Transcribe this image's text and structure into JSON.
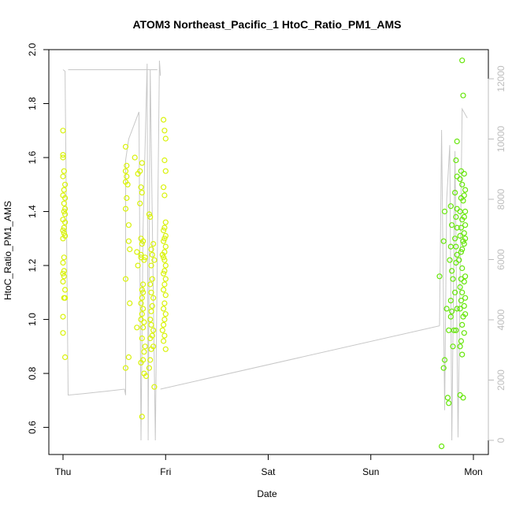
{
  "chart_data": {
    "type": "scatter",
    "title": "ATOM3 Northeast_Pacific_1 HtoC_Ratio_PM1_AMS",
    "xlabel": "Date",
    "ylabel": "HtoC_Ratio_PM1_AMS",
    "xlim": [
      0,
      4
    ],
    "ylim": [
      0.52,
      2.0
    ],
    "x_ticks": [
      {
        "value": 0,
        "label": "Thu"
      },
      {
        "value": 1,
        "label": "Fri"
      },
      {
        "value": 2,
        "label": "Sat"
      },
      {
        "value": 3,
        "label": "Sun"
      },
      {
        "value": 4,
        "label": "Mon"
      }
    ],
    "y_ticks": [
      {
        "value": 0.6,
        "label": "0.6"
      },
      {
        "value": 0.8,
        "label": "0.8"
      },
      {
        "value": 1.0,
        "label": "1.0"
      },
      {
        "value": 1.2,
        "label": "1.2"
      },
      {
        "value": 1.4,
        "label": "1.4"
      },
      {
        "value": 1.6,
        "label": "1.6"
      },
      {
        "value": 1.8,
        "label": "1.8"
      },
      {
        "value": 2.0,
        "label": "2.0"
      }
    ],
    "y2lim": [
      0,
      13500
    ],
    "y2_ticks": [
      {
        "value": 0,
        "label": "0"
      },
      {
        "value": 2000,
        "label": "2000"
      },
      {
        "value": 4000,
        "label": "4000"
      },
      {
        "value": 6000,
        "label": "6000"
      },
      {
        "value": 8000,
        "label": "8000"
      },
      {
        "value": 10000,
        "label": "10000"
      },
      {
        "value": 12000,
        "label": "12000"
      }
    ],
    "grid": false,
    "colors": {
      "early": "#d9f20a",
      "late": "#66e60a",
      "altitude_line": "#c8c8c8",
      "axis": "#000000",
      "right_axis": "#bdbdbd"
    },
    "series": [
      {
        "values": [
          [
            0.0,
            1.7
          ],
          [
            0.0,
            1.61
          ],
          [
            0.0,
            1.6
          ],
          [
            0.01,
            1.55
          ],
          [
            0.0,
            1.53
          ],
          [
            0.02,
            1.5
          ],
          [
            0.01,
            1.48
          ],
          [
            0.0,
            1.46
          ],
          [
            0.02,
            1.45
          ],
          [
            0.01,
            1.43
          ],
          [
            0.02,
            1.41
          ],
          [
            0.01,
            1.4
          ],
          [
            0.02,
            1.39
          ],
          [
            0.0,
            1.37
          ],
          [
            0.02,
            1.36
          ],
          [
            0.01,
            1.34
          ],
          [
            0.0,
            1.33
          ],
          [
            0.01,
            1.32
          ],
          [
            0.02,
            1.31
          ],
          [
            0.0,
            1.3
          ],
          [
            0.01,
            1.23
          ],
          [
            0.0,
            1.21
          ],
          [
            0.01,
            1.18
          ],
          [
            0.0,
            1.17
          ],
          [
            0.01,
            1.16
          ],
          [
            0.0,
            1.14
          ],
          [
            0.02,
            1.11
          ],
          [
            0.01,
            1.08
          ],
          [
            0.02,
            1.08
          ],
          [
            0.0,
            1.01
          ],
          [
            0.0,
            0.95
          ],
          [
            0.02,
            0.86
          ],
          [
            0.61,
            1.64
          ],
          [
            0.62,
            1.57
          ],
          [
            0.61,
            1.55
          ],
          [
            0.62,
            1.53
          ],
          [
            0.61,
            1.51
          ],
          [
            0.63,
            1.5
          ],
          [
            0.62,
            1.45
          ],
          [
            0.61,
            1.41
          ],
          [
            0.64,
            1.35
          ],
          [
            0.64,
            1.29
          ],
          [
            0.65,
            1.26
          ],
          [
            0.61,
            1.15
          ],
          [
            0.65,
            1.06
          ],
          [
            0.64,
            0.86
          ],
          [
            0.61,
            0.82
          ],
          [
            0.7,
            1.6
          ],
          [
            0.73,
            1.54
          ],
          [
            0.77,
            1.58
          ],
          [
            0.75,
            1.55
          ],
          [
            0.76,
            1.49
          ],
          [
            0.77,
            1.47
          ],
          [
            0.75,
            1.43
          ],
          [
            0.72,
            1.25
          ],
          [
            0.76,
            1.23
          ],
          [
            0.73,
            1.2
          ],
          [
            0.76,
            1.3
          ],
          [
            0.78,
            1.29
          ],
          [
            0.77,
            1.28
          ],
          [
            0.76,
            1.24
          ],
          [
            0.8,
            1.23
          ],
          [
            0.79,
            1.22
          ],
          [
            0.78,
            1.13
          ],
          [
            0.77,
            1.11
          ],
          [
            0.78,
            1.1
          ],
          [
            0.77,
            1.08
          ],
          [
            0.76,
            1.06
          ],
          [
            0.78,
            1.04
          ],
          [
            0.77,
            1.02
          ],
          [
            0.76,
            1.0
          ],
          [
            0.79,
            0.99
          ],
          [
            0.78,
            0.97
          ],
          [
            0.72,
            0.97
          ],
          [
            0.77,
            0.93
          ],
          [
            0.8,
            0.9
          ],
          [
            0.79,
            0.88
          ],
          [
            0.78,
            0.85
          ],
          [
            0.76,
            0.84
          ],
          [
            0.81,
            0.79
          ],
          [
            0.79,
            0.8
          ],
          [
            0.77,
            0.64
          ],
          [
            0.84,
            1.39
          ],
          [
            0.85,
            1.38
          ],
          [
            0.88,
            1.28
          ],
          [
            0.86,
            1.26
          ],
          [
            0.87,
            1.24
          ],
          [
            0.89,
            1.22
          ],
          [
            0.86,
            1.2
          ],
          [
            0.87,
            1.15
          ],
          [
            0.85,
            1.13
          ],
          [
            0.86,
            1.1
          ],
          [
            0.88,
            1.08
          ],
          [
            0.87,
            1.05
          ],
          [
            0.86,
            1.03
          ],
          [
            0.85,
            1.0
          ],
          [
            0.86,
            0.98
          ],
          [
            0.88,
            0.96
          ],
          [
            0.87,
            0.94
          ],
          [
            0.85,
            0.93
          ],
          [
            0.88,
            0.9
          ],
          [
            0.86,
            0.89
          ],
          [
            0.85,
            0.85
          ],
          [
            0.84,
            0.82
          ],
          [
            0.89,
            0.75
          ],
          [
            0.98,
            1.74
          ],
          [
            0.99,
            1.7
          ],
          [
            1.0,
            1.67
          ],
          [
            0.99,
            1.59
          ],
          [
            1.0,
            1.55
          ],
          [
            0.98,
            1.49
          ],
          [
            0.99,
            1.46
          ],
          [
            1.0,
            1.36
          ],
          [
            0.99,
            1.34
          ],
          [
            0.98,
            1.33
          ],
          [
            1.0,
            1.31
          ],
          [
            0.99,
            1.3
          ],
          [
            0.98,
            1.29
          ],
          [
            1.0,
            1.27
          ],
          [
            0.99,
            1.25
          ],
          [
            0.97,
            1.24
          ],
          [
            0.98,
            1.23
          ],
          [
            0.99,
            1.22
          ],
          [
            1.0,
            1.2
          ],
          [
            0.99,
            1.18
          ],
          [
            0.98,
            1.17
          ],
          [
            1.0,
            1.15
          ],
          [
            0.99,
            1.13
          ],
          [
            0.98,
            1.11
          ],
          [
            1.0,
            1.09
          ],
          [
            0.99,
            1.06
          ],
          [
            0.98,
            1.04
          ],
          [
            1.0,
            1.02
          ],
          [
            0.99,
            1.0
          ],
          [
            0.98,
            0.98
          ],
          [
            0.97,
            0.96
          ],
          [
            0.99,
            0.94
          ],
          [
            0.98,
            0.92
          ],
          [
            1.0,
            0.89
          ]
        ]
      },
      {
        "values": [
          [
            3.67,
            1.16
          ],
          [
            3.69,
            0.53
          ],
          [
            3.72,
            1.4
          ],
          [
            3.71,
            1.29
          ],
          [
            3.72,
            0.85
          ],
          [
            3.71,
            0.82
          ],
          [
            3.74,
            1.04
          ],
          [
            3.76,
            0.96
          ],
          [
            3.75,
            0.71
          ],
          [
            3.76,
            0.69
          ],
          [
            3.78,
            1.42
          ],
          [
            3.79,
            1.35
          ],
          [
            3.78,
            1.27
          ],
          [
            3.77,
            1.22
          ],
          [
            3.79,
            1.18
          ],
          [
            3.8,
            1.15
          ],
          [
            3.78,
            1.07
          ],
          [
            3.79,
            1.03
          ],
          [
            3.78,
            1.01
          ],
          [
            3.81,
            0.96
          ],
          [
            3.8,
            0.9
          ],
          [
            3.84,
            1.66
          ],
          [
            3.83,
            1.59
          ],
          [
            3.84,
            1.53
          ],
          [
            3.82,
            1.47
          ],
          [
            3.84,
            1.41
          ],
          [
            3.83,
            1.38
          ],
          [
            3.84,
            1.34
          ],
          [
            3.82,
            1.3
          ],
          [
            3.83,
            1.27
          ],
          [
            3.84,
            1.24
          ],
          [
            3.83,
            1.21
          ],
          [
            3.82,
            1.1
          ],
          [
            3.84,
            1.04
          ],
          [
            3.83,
            0.96
          ],
          [
            3.89,
            1.96
          ],
          [
            3.9,
            1.83
          ],
          [
            3.88,
            1.55
          ],
          [
            3.87,
            1.52
          ],
          [
            3.89,
            1.5
          ],
          [
            3.88,
            1.45
          ],
          [
            3.9,
            1.44
          ],
          [
            3.87,
            1.4
          ],
          [
            3.89,
            1.37
          ],
          [
            3.88,
            1.34
          ],
          [
            3.87,
            1.31
          ],
          [
            3.9,
            1.29
          ],
          [
            3.89,
            1.26
          ],
          [
            3.88,
            1.25
          ],
          [
            3.86,
            1.22
          ],
          [
            3.89,
            1.19
          ],
          [
            3.88,
            1.15
          ],
          [
            3.87,
            1.12
          ],
          [
            3.89,
            1.1
          ],
          [
            3.88,
            1.07
          ],
          [
            3.87,
            1.04
          ],
          [
            3.9,
            1.01
          ],
          [
            3.89,
            0.98
          ],
          [
            3.88,
            0.92
          ],
          [
            3.87,
            0.9
          ],
          [
            3.89,
            0.87
          ],
          [
            3.87,
            0.72
          ],
          [
            3.9,
            0.71
          ],
          [
            3.91,
            1.54
          ],
          [
            3.92,
            1.48
          ],
          [
            3.91,
            1.46
          ],
          [
            3.92,
            1.4
          ],
          [
            3.91,
            1.38
          ],
          [
            3.92,
            1.35
          ],
          [
            3.91,
            1.32
          ],
          [
            3.92,
            1.3
          ],
          [
            3.91,
            1.28
          ],
          [
            3.92,
            1.16
          ],
          [
            3.91,
            1.14
          ],
          [
            3.92,
            1.08
          ],
          [
            3.91,
            1.05
          ],
          [
            3.92,
            1.02
          ],
          [
            3.91,
            0.95
          ]
        ]
      }
    ],
    "altitude_line": {
      "values": [
        [
          0.0,
          12300
        ],
        [
          0.02,
          12250
        ],
        [
          0.05,
          1500
        ],
        [
          0.2,
          1550
        ],
        [
          0.4,
          1620
        ],
        [
          0.6,
          1700
        ],
        [
          0.61,
          1500
        ],
        [
          0.61,
          9300
        ],
        [
          0.64,
          10000
        ],
        [
          0.74,
          10900
        ],
        [
          0.76,
          0
        ],
        [
          0.78,
          7000
        ],
        [
          0.82,
          12500
        ],
        [
          0.83,
          0
        ],
        [
          0.85,
          12300
        ],
        [
          0.9,
          0
        ],
        [
          0.94,
          12600
        ],
        [
          0.95,
          12100
        ],
        [
          0.05,
          12300
        ],
        [
          0.92,
          12300
        ],
        [
          3.67,
          3800
        ],
        [
          3.69,
          10300
        ],
        [
          3.72,
          1000
        ],
        [
          3.74,
          8000
        ],
        [
          3.77,
          9800
        ],
        [
          3.79,
          0
        ],
        [
          3.82,
          9600
        ],
        [
          3.85,
          100
        ],
        [
          3.89,
          11000
        ],
        [
          3.94,
          10700
        ]
      ]
    }
  }
}
